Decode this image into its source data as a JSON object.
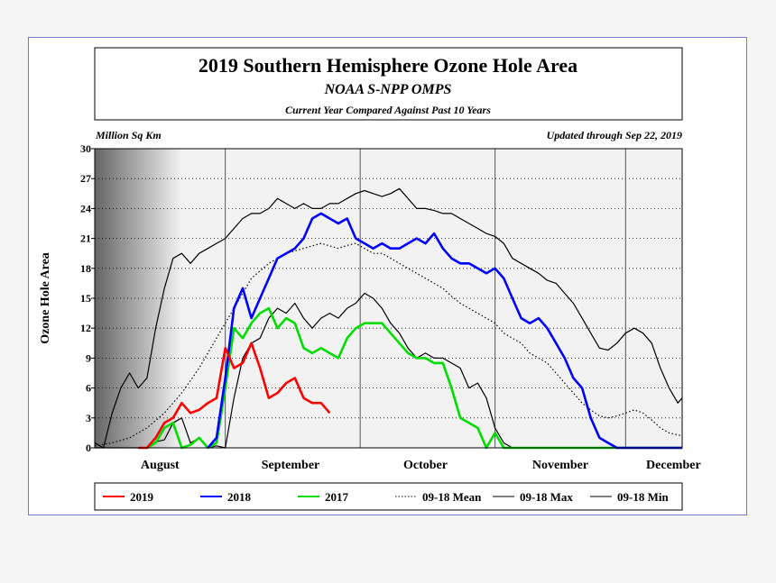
{
  "chart_data": {
    "type": "line",
    "title": "2019 Southern Hemisphere Ozone Hole Area",
    "subtitle": "NOAA S-NPP OMPS",
    "subtitle2": "Current Year Compared Against Past 10 Years",
    "unit_label": "Million Sq Km",
    "updated": "Updated through Sep 22, 2019",
    "ylabel": "Ozone Hole Area",
    "ylim": [
      0,
      30
    ],
    "yticks": [
      0,
      3,
      6,
      9,
      12,
      15,
      18,
      21,
      24,
      27,
      30
    ],
    "xlim": [
      0,
      135
    ],
    "month_boundaries": [
      30,
      61,
      92,
      122
    ],
    "month_labels": [
      {
        "label": "August",
        "x": 15
      },
      {
        "label": "September",
        "x": 45
      },
      {
        "label": "October",
        "x": 76
      },
      {
        "label": "November",
        "x": 107
      },
      {
        "label": "December",
        "x": 133
      }
    ],
    "series": [
      {
        "name": "09-18 Min",
        "color": "#000000",
        "style": "solid",
        "points": [
          [
            0,
            0
          ],
          [
            10,
            0
          ],
          [
            12,
            0
          ],
          [
            14,
            0.6
          ],
          [
            16,
            0.8
          ],
          [
            18,
            2.5
          ],
          [
            20,
            3
          ],
          [
            22,
            0.5
          ],
          [
            24,
            1
          ],
          [
            26,
            0
          ],
          [
            28,
            0.2
          ],
          [
            30,
            0
          ],
          [
            32,
            5
          ],
          [
            34,
            9
          ],
          [
            36,
            10.5
          ],
          [
            38,
            11
          ],
          [
            40,
            13
          ],
          [
            42,
            14
          ],
          [
            44,
            13.5
          ],
          [
            46,
            14.5
          ],
          [
            48,
            13
          ],
          [
            50,
            12
          ],
          [
            52,
            13
          ],
          [
            54,
            13.5
          ],
          [
            56,
            13
          ],
          [
            58,
            14
          ],
          [
            60,
            14.5
          ],
          [
            62,
            15.5
          ],
          [
            64,
            15
          ],
          [
            66,
            14
          ],
          [
            68,
            12.5
          ],
          [
            70,
            11.5
          ],
          [
            72,
            10
          ],
          [
            74,
            9
          ],
          [
            76,
            9.5
          ],
          [
            78,
            9
          ],
          [
            80,
            9
          ],
          [
            82,
            8.5
          ],
          [
            84,
            8
          ],
          [
            86,
            6
          ],
          [
            88,
            6.5
          ],
          [
            90,
            5
          ],
          [
            92,
            2
          ],
          [
            94,
            0.5
          ],
          [
            96,
            0
          ],
          [
            100,
            0
          ],
          [
            104,
            0
          ],
          [
            110,
            0
          ],
          [
            115,
            0
          ],
          [
            120,
            0
          ],
          [
            125,
            0
          ],
          [
            130,
            0
          ],
          [
            135,
            0
          ]
        ]
      },
      {
        "name": "09-18 Max",
        "color": "#000000",
        "style": "solid",
        "points": [
          [
            0,
            0.5
          ],
          [
            2,
            0
          ],
          [
            4,
            3.5
          ],
          [
            6,
            6
          ],
          [
            8,
            7.5
          ],
          [
            10,
            6
          ],
          [
            12,
            7
          ],
          [
            14,
            12
          ],
          [
            16,
            16
          ],
          [
            18,
            19
          ],
          [
            20,
            19.5
          ],
          [
            22,
            18.5
          ],
          [
            24,
            19.5
          ],
          [
            26,
            20
          ],
          [
            28,
            20.5
          ],
          [
            30,
            21
          ],
          [
            32,
            22
          ],
          [
            34,
            23
          ],
          [
            36,
            23.5
          ],
          [
            38,
            23.5
          ],
          [
            40,
            24
          ],
          [
            42,
            25
          ],
          [
            44,
            24.5
          ],
          [
            46,
            24
          ],
          [
            48,
            24.5
          ],
          [
            50,
            24
          ],
          [
            52,
            24
          ],
          [
            54,
            24.5
          ],
          [
            56,
            24.5
          ],
          [
            58,
            25
          ],
          [
            60,
            25.5
          ],
          [
            62,
            25.8
          ],
          [
            64,
            25.5
          ],
          [
            66,
            25.2
          ],
          [
            68,
            25.5
          ],
          [
            70,
            26
          ],
          [
            72,
            25
          ],
          [
            74,
            24
          ],
          [
            76,
            24
          ],
          [
            78,
            23.8
          ],
          [
            80,
            23.5
          ],
          [
            82,
            23.5
          ],
          [
            84,
            23
          ],
          [
            86,
            22.5
          ],
          [
            88,
            22
          ],
          [
            90,
            21.5
          ],
          [
            92,
            21.2
          ],
          [
            94,
            20.5
          ],
          [
            96,
            19
          ],
          [
            98,
            18.5
          ],
          [
            100,
            18
          ],
          [
            102,
            17.5
          ],
          [
            104,
            16.8
          ],
          [
            106,
            16.5
          ],
          [
            108,
            15.5
          ],
          [
            110,
            14.5
          ],
          [
            112,
            13
          ],
          [
            114,
            11.5
          ],
          [
            116,
            10
          ],
          [
            118,
            9.8
          ],
          [
            120,
            10.5
          ],
          [
            122,
            11.5
          ],
          [
            124,
            12
          ],
          [
            126,
            11.5
          ],
          [
            128,
            10.5
          ],
          [
            130,
            8
          ],
          [
            132,
            6
          ],
          [
            134,
            4.5
          ],
          [
            135,
            5
          ]
        ]
      },
      {
        "name": "09-18 Mean",
        "color": "#000000",
        "style": "dotted",
        "points": [
          [
            0,
            0.2
          ],
          [
            4,
            0.5
          ],
          [
            8,
            1
          ],
          [
            12,
            2
          ],
          [
            16,
            3.5
          ],
          [
            20,
            5.5
          ],
          [
            24,
            8
          ],
          [
            28,
            11
          ],
          [
            32,
            14
          ],
          [
            36,
            17
          ],
          [
            40,
            18.5
          ],
          [
            44,
            19.5
          ],
          [
            48,
            20
          ],
          [
            52,
            20.5
          ],
          [
            56,
            20
          ],
          [
            58,
            20.3
          ],
          [
            60,
            20.5
          ],
          [
            62,
            20
          ],
          [
            64,
            19.5
          ],
          [
            66,
            19.5
          ],
          [
            68,
            19
          ],
          [
            70,
            18.5
          ],
          [
            72,
            18
          ],
          [
            74,
            17.5
          ],
          [
            76,
            17
          ],
          [
            78,
            16.5
          ],
          [
            80,
            16
          ],
          [
            82,
            15.2
          ],
          [
            84,
            14.5
          ],
          [
            86,
            14
          ],
          [
            88,
            13.5
          ],
          [
            90,
            13
          ],
          [
            92,
            12.5
          ],
          [
            94,
            11.5
          ],
          [
            96,
            11
          ],
          [
            98,
            10.5
          ],
          [
            100,
            9.5
          ],
          [
            102,
            9
          ],
          [
            104,
            8.5
          ],
          [
            106,
            7.5
          ],
          [
            108,
            6.5
          ],
          [
            110,
            5.5
          ],
          [
            112,
            4.5
          ],
          [
            114,
            3.8
          ],
          [
            116,
            3.2
          ],
          [
            118,
            3
          ],
          [
            120,
            3.2
          ],
          [
            122,
            3.5
          ],
          [
            124,
            3.8
          ],
          [
            126,
            3.5
          ],
          [
            128,
            2.8
          ],
          [
            130,
            2
          ],
          [
            132,
            1.5
          ],
          [
            135,
            1.2
          ]
        ]
      },
      {
        "name": "2017",
        "color": "#00dd00",
        "style": "solid",
        "points": [
          [
            12,
            0
          ],
          [
            14,
            0.5
          ],
          [
            16,
            2
          ],
          [
            18,
            2.5
          ],
          [
            20,
            0
          ],
          [
            22,
            0.3
          ],
          [
            24,
            1
          ],
          [
            26,
            0
          ],
          [
            28,
            0.5
          ],
          [
            30,
            6
          ],
          [
            32,
            12
          ],
          [
            34,
            11
          ],
          [
            36,
            12.5
          ],
          [
            38,
            13.5
          ],
          [
            40,
            14
          ],
          [
            42,
            12
          ],
          [
            44,
            13
          ],
          [
            46,
            12.5
          ],
          [
            48,
            10
          ],
          [
            50,
            9.5
          ],
          [
            52,
            10
          ],
          [
            54,
            9.5
          ],
          [
            56,
            9
          ],
          [
            58,
            11
          ],
          [
            60,
            12
          ],
          [
            62,
            12.5
          ],
          [
            64,
            12.5
          ],
          [
            66,
            12.5
          ],
          [
            68,
            11.5
          ],
          [
            70,
            10.5
          ],
          [
            72,
            9.5
          ],
          [
            74,
            9
          ],
          [
            76,
            9
          ],
          [
            78,
            8.5
          ],
          [
            80,
            8.5
          ],
          [
            82,
            6
          ],
          [
            84,
            3
          ],
          [
            86,
            2.5
          ],
          [
            88,
            2
          ],
          [
            90,
            0
          ],
          [
            92,
            1.5
          ],
          [
            94,
            0
          ],
          [
            96,
            0
          ],
          [
            100,
            0
          ],
          [
            105,
            0
          ],
          [
            110,
            0
          ],
          [
            115,
            0
          ],
          [
            120,
            0
          ],
          [
            125,
            0
          ],
          [
            130,
            0
          ],
          [
            135,
            0
          ]
        ]
      },
      {
        "name": "2018",
        "color": "#0000ff",
        "style": "solid",
        "points": [
          [
            26,
            0
          ],
          [
            28,
            1
          ],
          [
            30,
            7
          ],
          [
            32,
            14
          ],
          [
            34,
            16
          ],
          [
            36,
            13
          ],
          [
            38,
            15
          ],
          [
            40,
            17
          ],
          [
            42,
            19
          ],
          [
            44,
            19.5
          ],
          [
            46,
            20
          ],
          [
            48,
            21
          ],
          [
            50,
            23
          ],
          [
            52,
            23.5
          ],
          [
            54,
            23
          ],
          [
            56,
            22.5
          ],
          [
            58,
            23
          ],
          [
            60,
            21
          ],
          [
            62,
            20.5
          ],
          [
            64,
            20
          ],
          [
            66,
            20.5
          ],
          [
            68,
            20
          ],
          [
            70,
            20
          ],
          [
            72,
            20.5
          ],
          [
            74,
            21
          ],
          [
            76,
            20.5
          ],
          [
            78,
            21.5
          ],
          [
            80,
            20
          ],
          [
            82,
            19
          ],
          [
            84,
            18.5
          ],
          [
            86,
            18.5
          ],
          [
            88,
            18
          ],
          [
            90,
            17.5
          ],
          [
            92,
            18
          ],
          [
            94,
            17
          ],
          [
            96,
            15
          ],
          [
            98,
            13
          ],
          [
            100,
            12.5
          ],
          [
            102,
            13
          ],
          [
            104,
            12
          ],
          [
            106,
            10.5
          ],
          [
            108,
            9
          ],
          [
            110,
            7
          ],
          [
            112,
            6
          ],
          [
            114,
            3
          ],
          [
            116,
            1
          ],
          [
            118,
            0.5
          ],
          [
            120,
            0
          ],
          [
            125,
            0
          ],
          [
            130,
            0
          ],
          [
            135,
            0
          ]
        ]
      },
      {
        "name": "2019",
        "color": "#ff0000",
        "style": "solid",
        "points": [
          [
            10,
            0
          ],
          [
            12,
            0
          ],
          [
            14,
            1
          ],
          [
            16,
            2.5
          ],
          [
            18,
            3
          ],
          [
            20,
            4.5
          ],
          [
            22,
            3.5
          ],
          [
            24,
            3.8
          ],
          [
            26,
            4.5
          ],
          [
            28,
            5
          ],
          [
            30,
            10
          ],
          [
            32,
            8
          ],
          [
            34,
            8.5
          ],
          [
            36,
            10.5
          ],
          [
            38,
            8
          ],
          [
            40,
            5
          ],
          [
            42,
            5.5
          ],
          [
            44,
            6.5
          ],
          [
            46,
            7
          ],
          [
            48,
            5
          ],
          [
            50,
            4.5
          ],
          [
            52,
            4.5
          ],
          [
            54,
            3.5
          ]
        ]
      }
    ]
  }
}
